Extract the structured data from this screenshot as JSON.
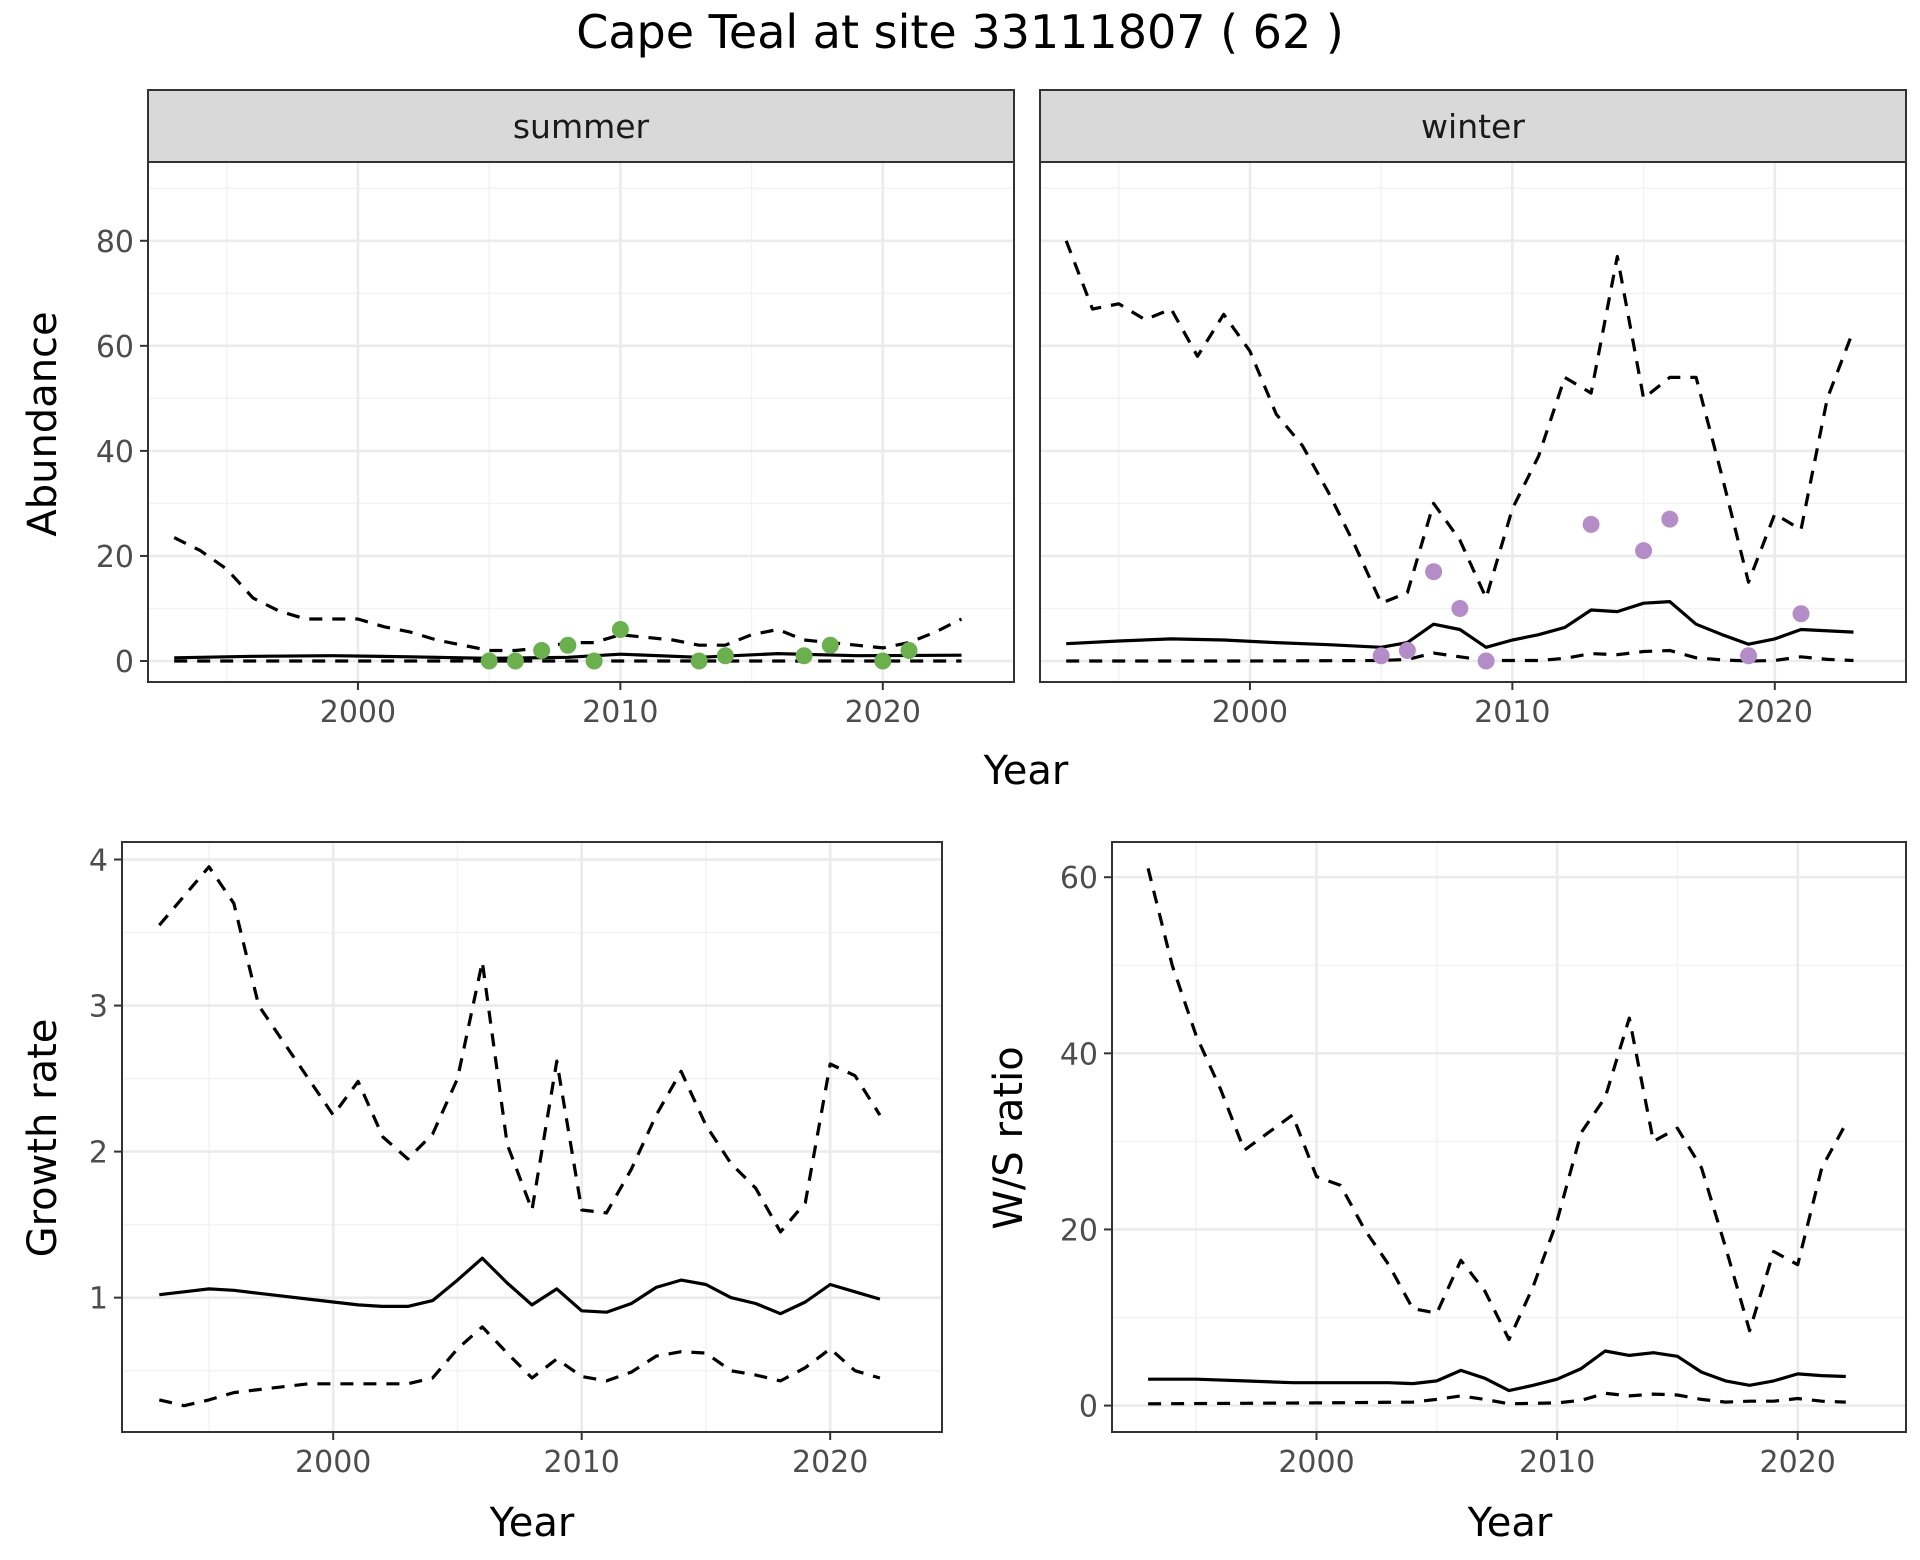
{
  "title": "Cape Teal at site 33111807 ( 62 )",
  "chart_data": [
    {
      "type": "line",
      "panel": "summer",
      "xlabel": "Year",
      "ylabel": "Abundance",
      "xlim": [
        1992,
        2025
      ],
      "ylim": [
        -4,
        95
      ],
      "xticks": [
        2000,
        2010,
        2020
      ],
      "yticks": [
        0,
        20,
        40,
        60,
        80
      ],
      "grid": true,
      "point_color": "#6ab04c",
      "series": [
        {
          "style": "dashed",
          "x": [
            1993,
            1994,
            1995,
            1996,
            1997,
            1998,
            1999,
            2000,
            2001,
            2002,
            2003,
            2004,
            2005,
            2006,
            2007,
            2008,
            2009,
            2010,
            2011,
            2012,
            2013,
            2014,
            2015,
            2016,
            2017,
            2018,
            2019,
            2020,
            2021,
            2022,
            2023
          ],
          "values": [
            23.5,
            21,
            17.5,
            12,
            9.5,
            8,
            8,
            8,
            6.5,
            5.5,
            4,
            3,
            2,
            2,
            2.5,
            3.5,
            3.5,
            5,
            4.5,
            4,
            3,
            3,
            5,
            6,
            4,
            3.5,
            3,
            2.5,
            3.5,
            5.5,
            8
          ]
        },
        {
          "style": "solid",
          "x": [
            1993,
            1996,
            1999,
            2002,
            2005,
            2008,
            2010,
            2013,
            2016,
            2019,
            2023
          ],
          "values": [
            0.6,
            0.9,
            1.0,
            0.8,
            0.5,
            0.7,
            1.3,
            0.7,
            1.4,
            1.0,
            1.1
          ]
        },
        {
          "style": "dashed",
          "x": [
            1993,
            2023
          ],
          "values": [
            0,
            0
          ]
        }
      ],
      "points": {
        "x": [
          2005,
          2006,
          2007,
          2008,
          2009,
          2010,
          2013,
          2014,
          2017,
          2018,
          2020,
          2021
        ],
        "y": [
          0,
          0,
          2,
          3,
          0,
          6,
          0,
          1,
          1,
          3,
          0,
          2
        ]
      }
    },
    {
      "type": "line",
      "panel": "winter",
      "xlabel": "Year",
      "ylabel": "Abundance",
      "xlim": [
        1992,
        2025
      ],
      "ylim": [
        -4,
        95
      ],
      "xticks": [
        2000,
        2010,
        2020
      ],
      "yticks": [
        0,
        20,
        40,
        60,
        80
      ],
      "grid": true,
      "point_color": "#b48cc8",
      "series": [
        {
          "style": "dashed",
          "x": [
            1993,
            1994,
            1995,
            1996,
            1997,
            1998,
            1999,
            2000,
            2001,
            2002,
            2003,
            2004,
            2005,
            2006,
            2007,
            2008,
            2009,
            2010,
            2011,
            2012,
            2013,
            2014,
            2015,
            2016,
            2017,
            2018,
            2019,
            2020,
            2021,
            2022,
            2023
          ],
          "values": [
            80,
            67,
            68,
            65,
            67,
            58,
            66,
            59,
            47,
            41,
            32,
            22,
            11,
            13,
            30,
            23,
            12,
            29,
            39,
            54,
            51,
            77,
            50,
            54,
            54,
            35,
            15,
            28,
            25,
            50,
            63
          ]
        },
        {
          "style": "solid",
          "x": [
            1993,
            1995,
            1997,
            1999,
            2001,
            2003,
            2005,
            2006,
            2007,
            2008,
            2009,
            2010,
            2011,
            2012,
            2013,
            2014,
            2015,
            2016,
            2017,
            2018,
            2019,
            2020,
            2021,
            2023
          ],
          "values": [
            3.3,
            3.8,
            4.2,
            4.0,
            3.5,
            3.1,
            2.6,
            3.5,
            7,
            6,
            2.6,
            4,
            5,
            6.4,
            9.7,
            9.4,
            11,
            11.3,
            7,
            5,
            3.2,
            4.2,
            6,
            5.5
          ]
        },
        {
          "style": "dashed",
          "x": [
            1993,
            2000,
            2005,
            2006,
            2007,
            2008,
            2009,
            2011,
            2012,
            2013,
            2014,
            2015,
            2016,
            2017,
            2018,
            2019,
            2020,
            2021,
            2022,
            2023
          ],
          "values": [
            0,
            0,
            0.1,
            0.3,
            1.5,
            0.8,
            0.1,
            0.1,
            0.5,
            1.4,
            1.2,
            1.8,
            2,
            0.6,
            0.2,
            0,
            0.1,
            0.8,
            0.3,
            0.1
          ]
        }
      ],
      "points": {
        "x": [
          2005,
          2006,
          2007,
          2008,
          2009,
          2013,
          2015,
          2016,
          2019,
          2021
        ],
        "y": [
          1,
          2,
          17,
          10,
          0,
          26,
          21,
          27,
          1,
          9
        ]
      }
    },
    {
      "type": "line",
      "panel": "growth",
      "xlabel": "Year",
      "ylabel": "Growth rate",
      "xlim": [
        1991.5,
        2024.5
      ],
      "ylim": [
        0.08,
        4.12
      ],
      "xticks": [
        2000,
        2010,
        2020
      ],
      "yticks": [
        1,
        2,
        3,
        4
      ],
      "grid": true,
      "series": [
        {
          "style": "dashed",
          "x": [
            1993,
            1994,
            1995,
            1996,
            1997,
            1998,
            1999,
            2000,
            2001,
            2002,
            2003,
            2004,
            2005,
            2006,
            2007,
            2008,
            2009,
            2010,
            2011,
            2012,
            2013,
            2014,
            2015,
            2016,
            2017,
            2018,
            2019,
            2020,
            2021,
            2022
          ],
          "values": [
            3.55,
            3.75,
            3.95,
            3.7,
            3.0,
            2.75,
            2.5,
            2.25,
            2.48,
            2.1,
            1.95,
            2.12,
            2.5,
            3.3,
            2.05,
            1.6,
            2.62,
            1.6,
            1.58,
            1.88,
            2.25,
            2.55,
            2.18,
            1.92,
            1.75,
            1.45,
            1.65,
            2.6,
            2.52,
            2.25
          ]
        },
        {
          "style": "solid",
          "x": [
            1993,
            1994,
            1995,
            1996,
            1997,
            1998,
            1999,
            2000,
            2001,
            2002,
            2003,
            2004,
            2005,
            2006,
            2007,
            2008,
            2009,
            2010,
            2011,
            2012,
            2013,
            2014,
            2015,
            2016,
            2017,
            2018,
            2019,
            2020,
            2021,
            2022
          ],
          "values": [
            1.02,
            1.04,
            1.06,
            1.05,
            1.03,
            1.01,
            0.99,
            0.97,
            0.95,
            0.94,
            0.94,
            0.98,
            1.12,
            1.27,
            1.1,
            0.95,
            1.06,
            0.91,
            0.9,
            0.96,
            1.07,
            1.12,
            1.09,
            1.0,
            0.96,
            0.89,
            0.97,
            1.09,
            1.04,
            0.99
          ]
        },
        {
          "style": "dashed",
          "x": [
            1993,
            1994,
            1995,
            1996,
            1997,
            1998,
            1999,
            2000,
            2001,
            2002,
            2003,
            2004,
            2005,
            2006,
            2007,
            2008,
            2009,
            2010,
            2011,
            2012,
            2013,
            2014,
            2015,
            2016,
            2017,
            2018,
            2019,
            2020,
            2021,
            2022
          ],
          "values": [
            0.3,
            0.26,
            0.3,
            0.35,
            0.37,
            0.39,
            0.41,
            0.41,
            0.41,
            0.41,
            0.41,
            0.45,
            0.65,
            0.8,
            0.62,
            0.45,
            0.58,
            0.46,
            0.43,
            0.49,
            0.6,
            0.63,
            0.62,
            0.5,
            0.47,
            0.43,
            0.52,
            0.65,
            0.5,
            0.45
          ]
        }
      ]
    },
    {
      "type": "line",
      "panel": "ratio",
      "xlabel": "Year",
      "ylabel": "W/S ratio",
      "xlim": [
        1991.5,
        2024.5
      ],
      "ylim": [
        -3,
        64
      ],
      "xticks": [
        2000,
        2010,
        2020
      ],
      "yticks": [
        0,
        20,
        40,
        60
      ],
      "grid": true,
      "series": [
        {
          "style": "dashed",
          "x": [
            1993,
            1994,
            1995,
            1996,
            1997,
            1998,
            1999,
            2000,
            2001,
            2002,
            2003,
            2004,
            2005,
            2006,
            2007,
            2008,
            2009,
            2010,
            2011,
            2012,
            2013,
            2014,
            2015,
            2016,
            2017,
            2018,
            2019,
            2020,
            2021,
            2022
          ],
          "values": [
            61,
            50,
            42,
            36,
            29,
            31,
            33,
            26,
            25,
            20,
            16,
            11,
            10.5,
            16.5,
            13,
            7.5,
            13.5,
            21,
            31,
            35,
            44,
            30,
            31.5,
            27,
            18,
            8.5,
            17.5,
            16,
            27,
            32
          ]
        },
        {
          "style": "solid",
          "x": [
            1993,
            1995,
            1997,
            1999,
            2001,
            2003,
            2004,
            2005,
            2006,
            2007,
            2008,
            2009,
            2010,
            2011,
            2012,
            2013,
            2014,
            2015,
            2016,
            2017,
            2018,
            2019,
            2020,
            2021,
            2022
          ],
          "values": [
            3.0,
            3.0,
            2.8,
            2.6,
            2.6,
            2.6,
            2.5,
            2.8,
            4,
            3.1,
            1.7,
            2.3,
            3.0,
            4.2,
            6.2,
            5.7,
            6,
            5.6,
            3.8,
            2.8,
            2.3,
            2.8,
            3.6,
            3.4,
            3.3
          ]
        },
        {
          "style": "dashed",
          "x": [
            1993,
            2000,
            2004,
            2005,
            2006,
            2007,
            2008,
            2010,
            2011,
            2012,
            2013,
            2014,
            2015,
            2016,
            2017,
            2018,
            2019,
            2020,
            2021,
            2022
          ],
          "values": [
            0.2,
            0.3,
            0.4,
            0.7,
            1.1,
            0.7,
            0.2,
            0.3,
            0.6,
            1.4,
            1.1,
            1.3,
            1.2,
            0.7,
            0.4,
            0.5,
            0.5,
            0.8,
            0.5,
            0.4
          ]
        }
      ]
    }
  ],
  "strips": {
    "summer": "summer",
    "winter": "winter"
  },
  "labels": {
    "top_xlabel": "Year"
  }
}
